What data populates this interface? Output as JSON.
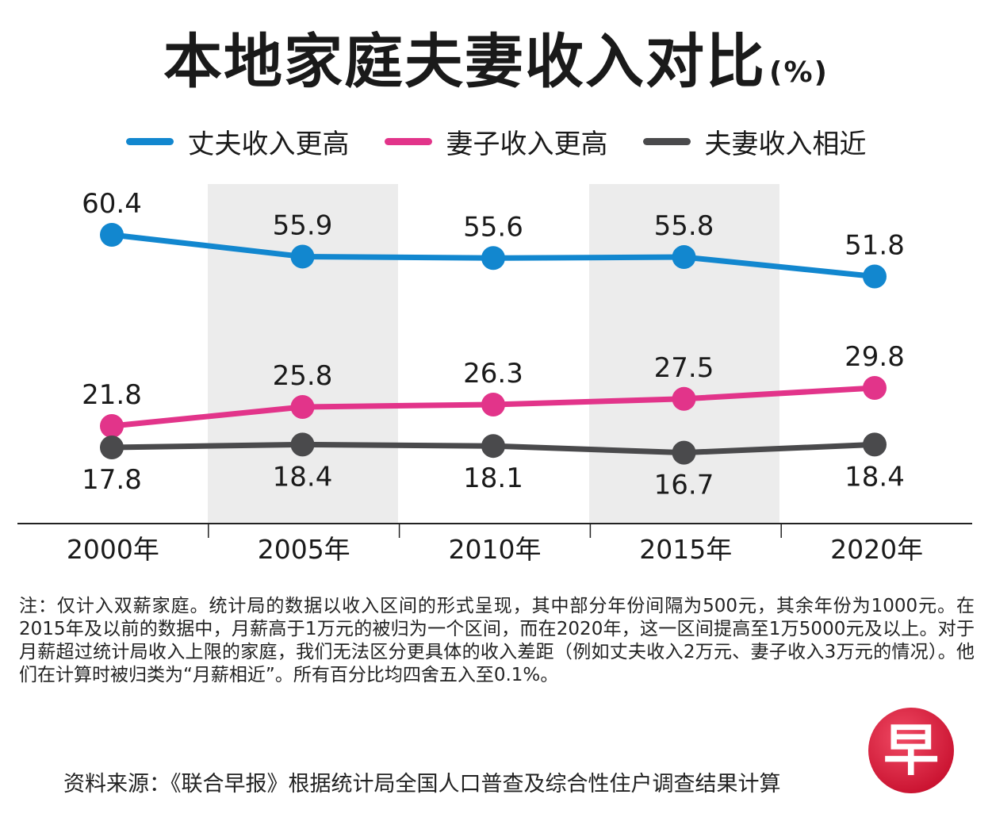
{
  "header": {
    "title": "本地家庭夫妻收入对比",
    "unit": "(%)"
  },
  "colors": {
    "husband": "#1287cf",
    "wife": "#e2348a",
    "similar": "#4a4a4c",
    "band": "#ececec"
  },
  "chart_data": {
    "type": "line",
    "categories": [
      "2000年",
      "2005年",
      "2010年",
      "2015年",
      "2020年"
    ],
    "series": [
      {
        "name": "丈夫收入更高",
        "values": [
          60.4,
          55.9,
          55.6,
          55.8,
          51.8
        ],
        "labels": [
          "60.4",
          "55.9",
          "55.6",
          "55.8",
          "51.8"
        ],
        "color_key": "husband",
        "label_side": "above"
      },
      {
        "name": "妻子收入更高",
        "values": [
          21.8,
          25.8,
          26.3,
          27.5,
          29.8
        ],
        "labels": [
          "21.8",
          "25.8",
          "26.3",
          "27.5",
          "29.8"
        ],
        "color_key": "wife",
        "label_side": "above"
      },
      {
        "name": "夫妻收入相近",
        "values": [
          17.8,
          18.4,
          18.1,
          16.7,
          18.4
        ],
        "labels": [
          "17.8",
          "18.4",
          "18.1",
          "16.7",
          "18.4"
        ],
        "color_key": "similar",
        "label_side": "below"
      }
    ],
    "ylim": [
      0,
      65
    ],
    "grid": false,
    "shaded_columns": [
      1,
      3
    ],
    "legend_position": "top-center"
  },
  "footer": {
    "note": "注：仅计入双薪家庭。统计局的数据以收入区间的形式呈现，其中部分年份间隔为500元，其余年份为1000元。在2015年及以前的数据中，月薪高于1万元的被归为一个区间，而在2020年，这一区间提高至1万5000元及以上。对于月薪超过统计局收入上限的家庭，我们无法区分更具体的收入差距（例如丈夫收入2万元、妻子收入3万元的情况）。他们在计算时被归类为“月薪相近”。所有百分比均四舍五入至0.1%。",
    "source": "资料来源：《联合早报》根据统计局全国人口普查及综合性住户调查结果计算",
    "logo_char": "早",
    "logo_icon": "zaobao-logo-icon"
  }
}
